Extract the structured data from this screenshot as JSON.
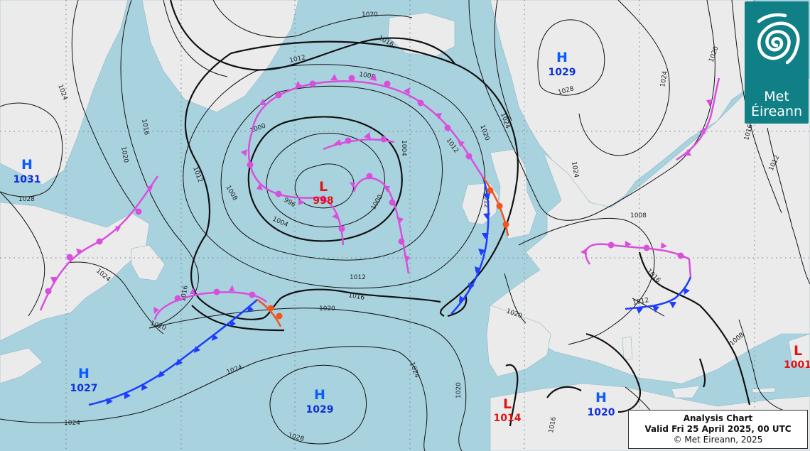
{
  "chart": {
    "title": "Analysis Chart",
    "valid": "Valid Fri 25 April 2025, 00 UTC",
    "copyright": "© Met Éireann, 2025"
  },
  "logo": {
    "line1": "Met",
    "line2": "Éireann",
    "icon": "met-eireann-swirl-icon",
    "color": "#117f86"
  },
  "colors": {
    "sea": "#a9d2df",
    "land": "#ebebeb",
    "high": "#0a5cff",
    "low": "#e11313",
    "cold_front": "#1d3dff",
    "warm_front": "#f0561e",
    "occluded_front": "#d94fdc"
  },
  "pressure_centres": [
    {
      "type": "H",
      "value": "1031"
    },
    {
      "type": "H",
      "value": "1029"
    },
    {
      "type": "H",
      "value": "1027"
    },
    {
      "type": "H",
      "value": "1029"
    },
    {
      "type": "H",
      "value": "1020"
    },
    {
      "type": "L",
      "value": "998"
    },
    {
      "type": "L",
      "value": "1014"
    },
    {
      "type": "L",
      "value": "1001"
    }
  ],
  "isobar_labels": [
    "1020",
    "1016",
    "1012",
    "1008",
    "1004",
    "1000",
    "1024",
    "1028",
    "1024",
    "1020",
    "1016",
    "1012",
    "1008",
    "1004",
    "1000",
    "996",
    "1016",
    "1020",
    "1024",
    "1012",
    "1028",
    "1024",
    "1020",
    "1024",
    "1028",
    "1020",
    "1016",
    "1012",
    "1024",
    "1020",
    "1012",
    "1016",
    "1012",
    "1016",
    "1008",
    "1012",
    "1016",
    "1020",
    "1024",
    "1024",
    "1020",
    "1008"
  ]
}
